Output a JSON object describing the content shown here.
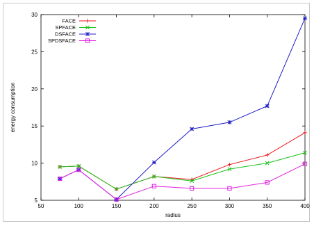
{
  "chart_data": {
    "type": "line",
    "title": "",
    "xlabel": "radius",
    "ylabel": "energy consumption",
    "x": [
      75,
      100,
      150,
      200,
      250,
      300,
      350,
      400
    ],
    "xlim": [
      50,
      400
    ],
    "ylim": [
      5,
      30
    ],
    "xticks": [
      50,
      100,
      150,
      200,
      250,
      300,
      350,
      400
    ],
    "yticks": [
      5,
      10,
      15,
      20,
      25,
      30
    ],
    "grid": false,
    "legend_position": "top-left",
    "series": [
      {
        "name": "FACE",
        "color": "#e8161c",
        "marker": "plus",
        "values": [
          9.5,
          9.6,
          6.5,
          8.2,
          7.8,
          9.8,
          11.1,
          14.1
        ]
      },
      {
        "name": "SPFACE",
        "color": "#19c219",
        "marker": "x",
        "values": [
          9.5,
          9.6,
          6.5,
          8.2,
          7.6,
          9.2,
          10.0,
          11.4
        ]
      },
      {
        "name": "DSFACE",
        "color": "#1e1ec8",
        "marker": "star",
        "values": [
          7.9,
          9.1,
          5.1,
          10.1,
          14.6,
          15.5,
          17.7,
          29.5
        ]
      },
      {
        "name": "SPDSFACE",
        "color": "#e020e0",
        "marker": "square",
        "values": [
          7.9,
          9.1,
          5.1,
          6.9,
          6.6,
          6.6,
          7.4,
          9.9
        ]
      }
    ]
  }
}
